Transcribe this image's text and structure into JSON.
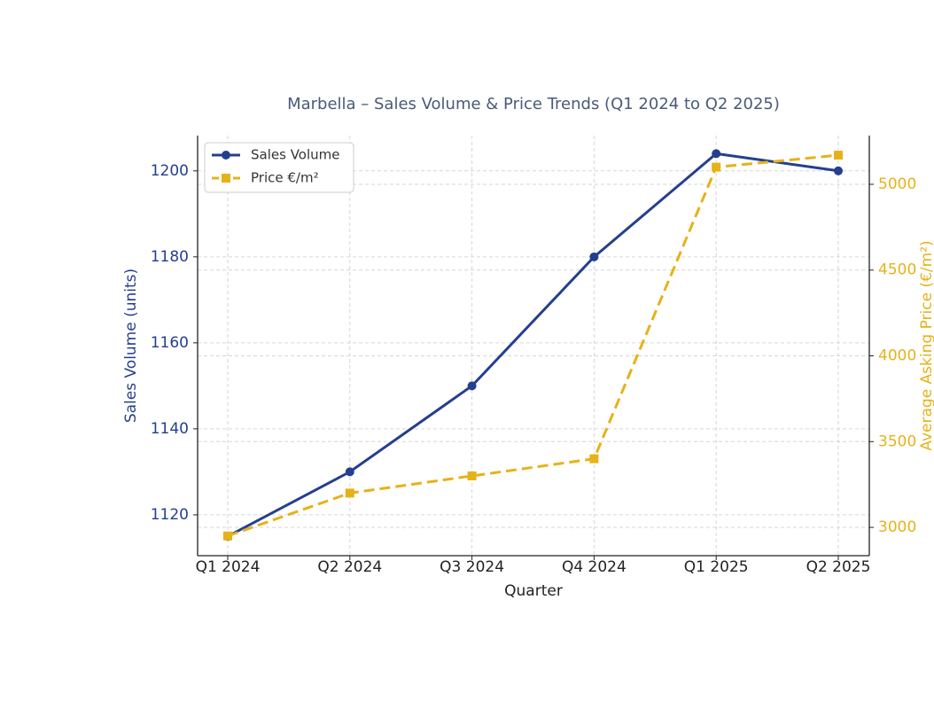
{
  "chart_data": {
    "type": "line",
    "title": "Marbella – Sales Volume & Price Trends (Q1 2024 to Q2 2025)",
    "x_label": "Quarter",
    "y_label": "Sales Volume (units)",
    "y2_label": "Average Asking Price (€/m²)",
    "categories": [
      "Q1 2024",
      "Q2 2024",
      "Q3 2024",
      "Q4 2024",
      "Q1 2025",
      "Q2 2025"
    ],
    "series": [
      {
        "name": "Sales Volume",
        "color": "#253f8e",
        "marker": "circle",
        "dash": false,
        "axis": "y",
        "values": [
          1115,
          1130,
          1150,
          1180,
          1204,
          1200
        ]
      },
      {
        "name": "Price €/m²",
        "color": "#e6b219",
        "marker": "square",
        "dash": true,
        "axis": "y2",
        "values": [
          2950,
          3200,
          3300,
          3400,
          5100,
          5170
        ]
      }
    ],
    "ylim": [
      1110.5,
      1208.2
    ],
    "yticks": [
      1120,
      1140,
      1160,
      1180,
      1200
    ],
    "y2lim": [
      2835,
      5284
    ],
    "y2ticks": [
      3000,
      3500,
      4000,
      4500,
      5000
    ],
    "grid": true,
    "legend": "upper left"
  }
}
